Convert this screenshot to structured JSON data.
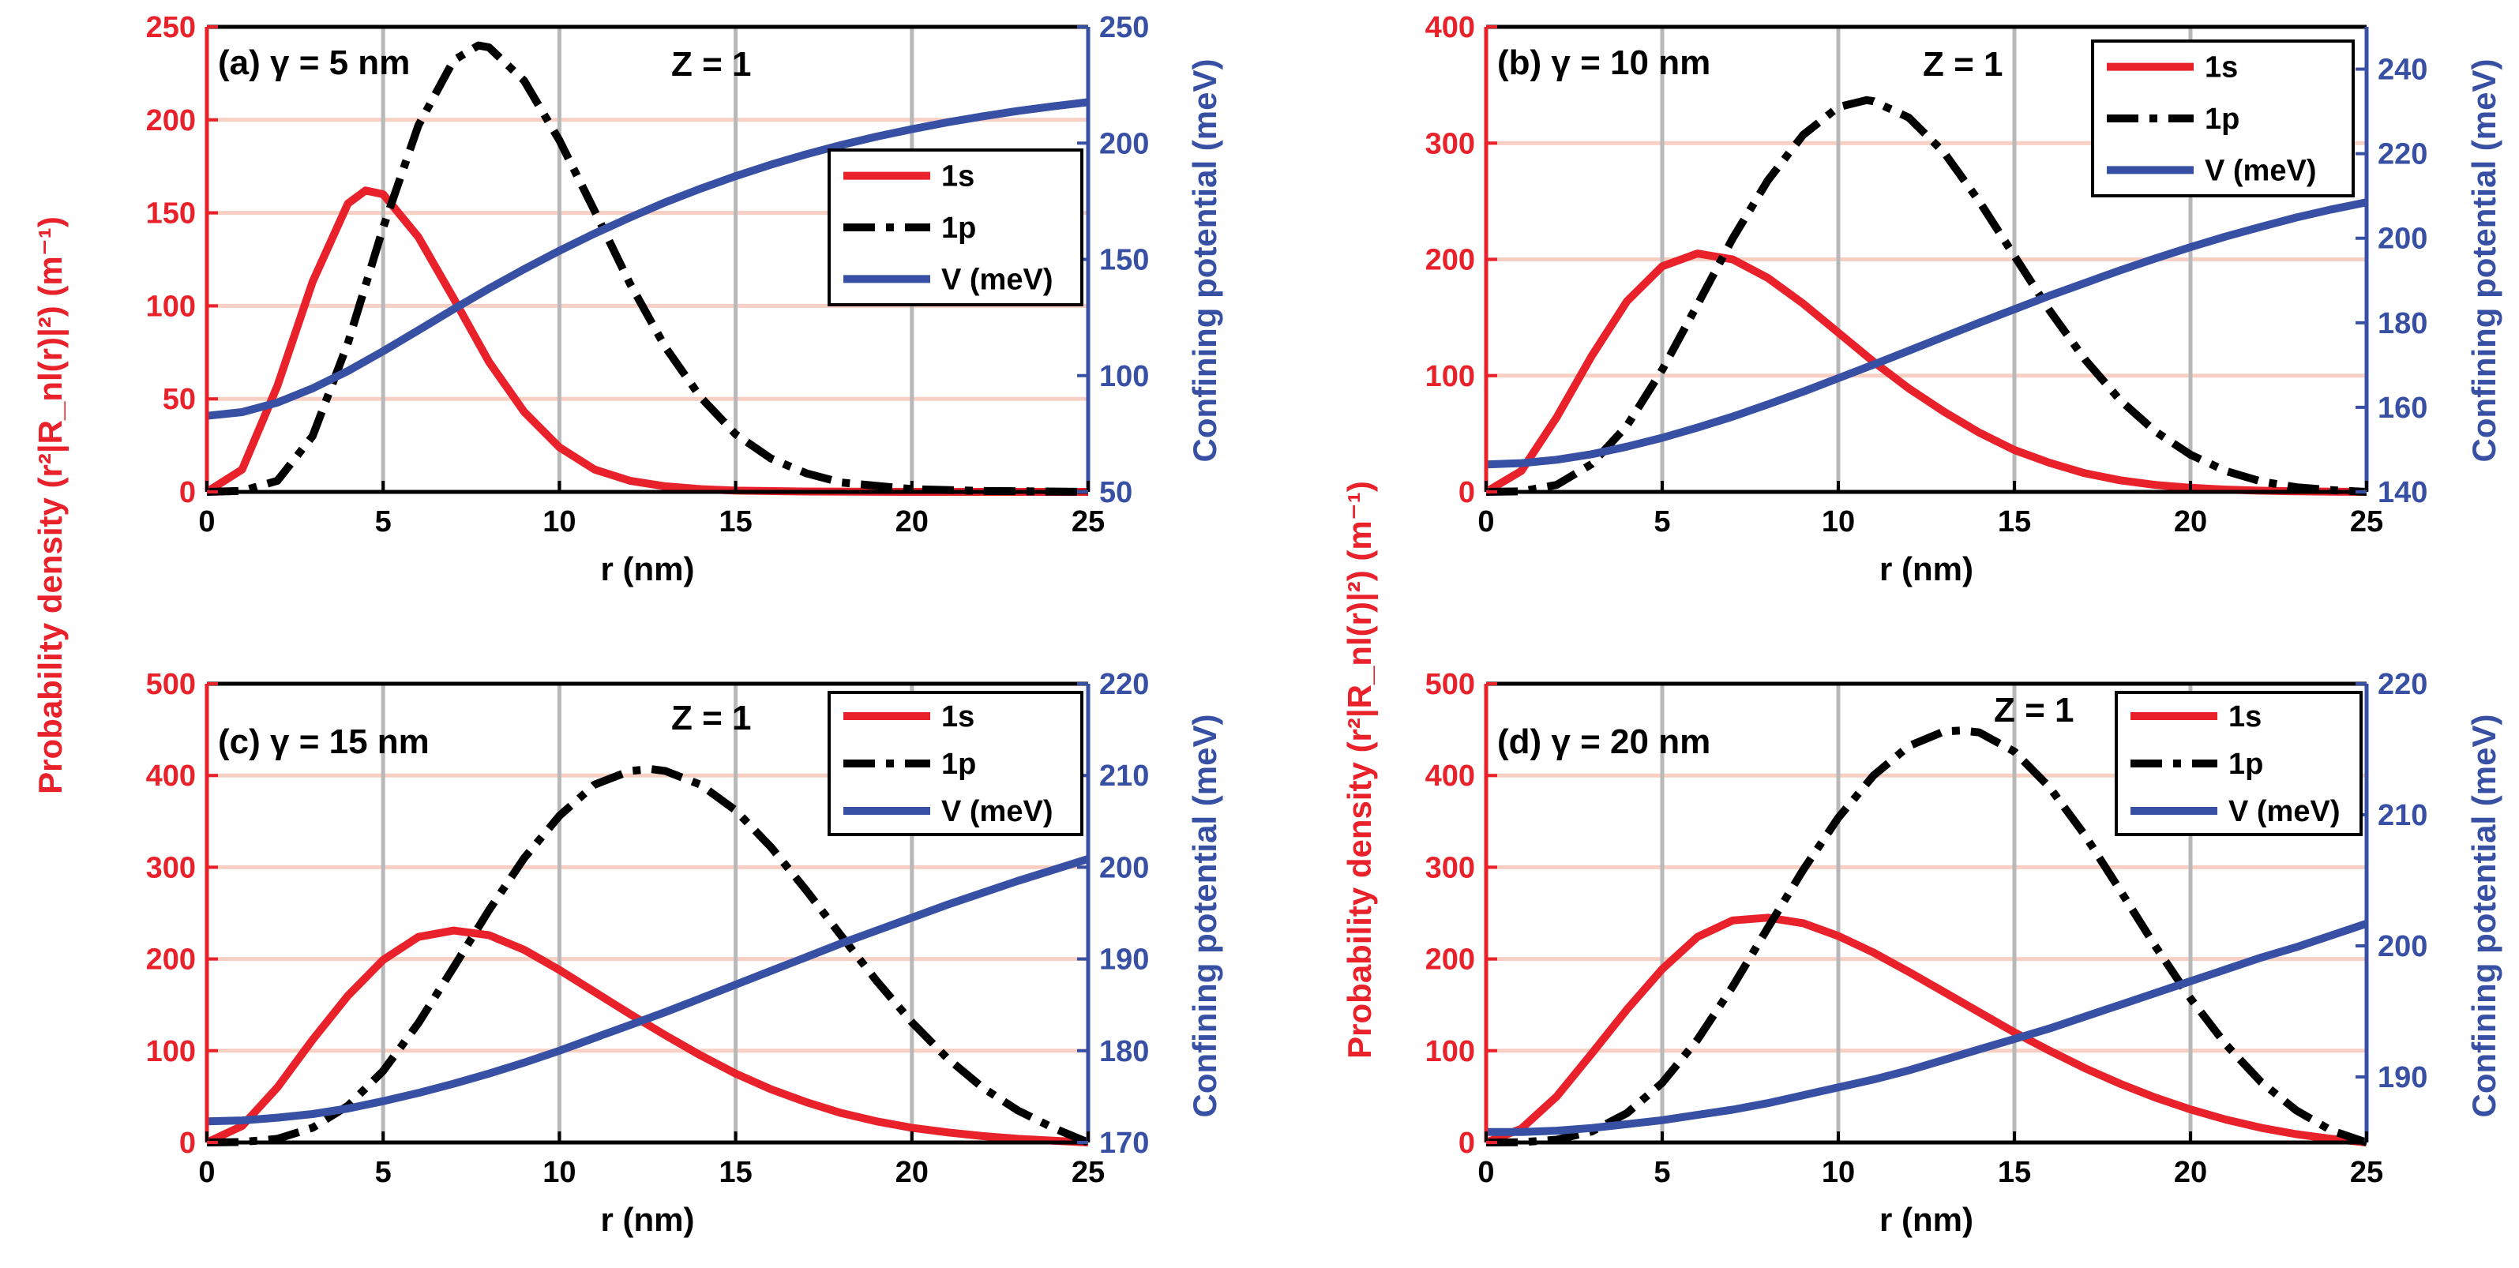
{
  "figure": {
    "left_ylabel": "Probability density (r²|R_nl(r)|²) (m⁻¹)",
    "right_ylabel": "Confining potential (meV)",
    "colors": {
      "s1": "#e8212a",
      "p1": "#000000",
      "V": "#3850a3",
      "hgrid": "#f7cfc3",
      "vgrid": "#b8b8b8"
    }
  },
  "chart_data": [
    {
      "type": "line",
      "panel_label": "(a) γ = 5 nm",
      "z_label": "Z = 1",
      "xlabel": "r (nm)",
      "xlim": [
        0,
        25
      ],
      "xticks": [
        0,
        5,
        10,
        15,
        20,
        25
      ],
      "ylim_left": [
        0,
        250
      ],
      "yticks_left": [
        0,
        50,
        100,
        150,
        200,
        250
      ],
      "ylim_right": [
        50,
        250
      ],
      "yticks_right": [
        50,
        100,
        150,
        200,
        250
      ],
      "legend_position": "upper-right",
      "series": [
        {
          "name": "1s",
          "axis": "left",
          "style": "solid",
          "color": "#e8212a",
          "x": [
            0,
            1,
            2,
            3,
            4,
            4.5,
            5,
            6,
            7,
            8,
            9,
            10,
            11,
            12,
            13,
            14,
            15,
            17,
            20,
            25
          ],
          "values": [
            0,
            12,
            57,
            113,
            155,
            162,
            160,
            137,
            104,
            70,
            43,
            24,
            12,
            6,
            3,
            1.5,
            0.7,
            0.2,
            0,
            0
          ]
        },
        {
          "name": "1p",
          "axis": "left",
          "style": "dash-dot",
          "color": "#000000",
          "x": [
            0,
            1,
            2,
            3,
            4,
            5,
            6,
            7,
            7.7,
            8,
            9,
            10,
            11,
            12,
            13,
            14,
            15,
            16,
            17,
            18,
            20,
            22,
            25
          ],
          "values": [
            0,
            0.5,
            6,
            30,
            80,
            142,
            197,
            232,
            240,
            239,
            221,
            189,
            151,
            112,
            78,
            51,
            31,
            18,
            10,
            5,
            1.5,
            0.5,
            0
          ]
        },
        {
          "name": "V (meV)",
          "axis": "right",
          "style": "solid",
          "color": "#3850a3",
          "x": [
            0,
            1,
            2,
            3,
            4,
            5,
            6,
            7,
            8,
            9,
            10,
            11,
            12,
            13,
            14,
            15,
            16,
            17,
            18,
            19,
            20,
            21,
            22,
            23,
            24,
            25
          ],
          "values": [
            82.7,
            84.3,
            88.4,
            94.5,
            102,
            110.5,
            119.5,
            128.6,
            137.4,
            145.8,
            153.7,
            161.1,
            168,
            174.5,
            180.4,
            185.8,
            190.7,
            195.2,
            199.2,
            202.8,
            206,
            208.9,
            211.5,
            213.8,
            215.8,
            217.6
          ]
        }
      ]
    },
    {
      "type": "line",
      "panel_label": "(b) γ = 10 nm",
      "z_label": "Z = 1",
      "xlabel": "r (nm)",
      "xlim": [
        0,
        25
      ],
      "xticks": [
        0,
        5,
        10,
        15,
        20,
        25
      ],
      "ylim_left": [
        0,
        400
      ],
      "yticks_left": [
        0,
        100,
        200,
        300,
        400
      ],
      "ylim_right": [
        140,
        250
      ],
      "yticks_right": [
        140,
        160,
        180,
        200,
        220,
        240
      ],
      "legend_position": "upper-right",
      "series": [
        {
          "name": "1s",
          "axis": "left",
          "style": "solid",
          "color": "#e8212a",
          "x": [
            0,
            1,
            2,
            3,
            4,
            5,
            6,
            7,
            8,
            9,
            10,
            11,
            12,
            13,
            14,
            15,
            16,
            17,
            18,
            19,
            20,
            21,
            22,
            23,
            24,
            25
          ],
          "values": [
            0,
            18,
            64,
            117,
            164,
            194,
            205,
            200,
            184,
            162,
            137,
            112,
            89,
            69,
            51,
            36,
            25,
            16,
            10,
            6,
            3.5,
            2,
            1,
            0.5,
            0.2,
            0
          ]
        },
        {
          "name": "1p",
          "axis": "left",
          "style": "dash-dot",
          "color": "#000000",
          "x": [
            0,
            1,
            2,
            3,
            4,
            5,
            6,
            7,
            8,
            9,
            10,
            10.8,
            11,
            12,
            13,
            14,
            15,
            16,
            17,
            18,
            19,
            20,
            21,
            22,
            23,
            24,
            25
          ],
          "values": [
            0,
            0.5,
            6,
            24,
            57,
            105,
            161,
            218,
            268,
            307,
            331,
            337,
            336,
            322,
            292,
            250,
            203,
            156,
            114,
            79,
            52,
            32,
            18,
            9,
            4,
            1.5,
            0
          ]
        },
        {
          "name": "V (meV)",
          "axis": "right",
          "style": "solid",
          "color": "#3850a3",
          "x": [
            0,
            1,
            2,
            3,
            4,
            5,
            6,
            7,
            8,
            9,
            10,
            11,
            12,
            13,
            14,
            15,
            16,
            17,
            18,
            19,
            20,
            21,
            22,
            23,
            24,
            25
          ],
          "values": [
            146.5,
            146.8,
            147.6,
            148.9,
            150.7,
            152.8,
            155.2,
            157.8,
            160.7,
            163.7,
            166.9,
            170.1,
            173.4,
            176.7,
            180,
            183.2,
            186.4,
            189.4,
            192.4,
            195.2,
            197.9,
            200.4,
            202.7,
            204.9,
            206.8,
            208.5
          ]
        }
      ]
    },
    {
      "type": "line",
      "panel_label": "(c) γ = 15 nm",
      "z_label": "Z = 1",
      "xlabel": "r (nm)",
      "xlim": [
        0,
        25
      ],
      "xticks": [
        0,
        5,
        10,
        15,
        20,
        25
      ],
      "ylim_left": [
        0,
        500
      ],
      "yticks_left": [
        0,
        100,
        200,
        300,
        400,
        500
      ],
      "ylim_right": [
        170,
        220
      ],
      "yticks_right": [
        170,
        180,
        190,
        200,
        210,
        220
      ],
      "legend_position": "upper-right",
      "series": [
        {
          "name": "1s",
          "axis": "left",
          "style": "solid",
          "color": "#e8212a",
          "x": [
            0,
            1,
            2,
            3,
            4,
            5,
            6,
            7,
            8,
            9,
            10,
            11,
            12,
            13,
            14,
            15,
            16,
            17,
            18,
            19,
            20,
            21,
            22,
            23,
            24,
            25
          ],
          "values": [
            0,
            18,
            60,
            112,
            160,
            199,
            224,
            231,
            226,
            210,
            188,
            164,
            140,
            117,
            95,
            75,
            58,
            44,
            32,
            23,
            16,
            11,
            7,
            4,
            2,
            0
          ]
        },
        {
          "name": "1p",
          "axis": "left",
          "style": "dash-dot",
          "color": "#000000",
          "x": [
            0,
            1,
            2,
            3,
            4,
            5,
            6,
            7,
            8,
            9,
            10,
            11,
            12,
            12.6,
            13,
            14,
            15,
            16,
            17,
            18,
            19,
            20,
            21,
            22,
            23,
            24,
            25
          ],
          "values": [
            0,
            0.5,
            4,
            16,
            40,
            78,
            130,
            191,
            253,
            310,
            356,
            390,
            405,
            407,
            405,
            390,
            362,
            322,
            275,
            225,
            176,
            131,
            92,
            60,
            35,
            16,
            0
          ]
        },
        {
          "name": "V (meV)",
          "axis": "right",
          "style": "solid",
          "color": "#3850a3",
          "x": [
            0,
            1,
            2,
            3,
            4,
            5,
            6,
            7,
            8,
            9,
            10,
            11,
            12,
            13,
            14,
            15,
            16,
            17,
            18,
            19,
            20,
            21,
            22,
            23,
            24,
            25
          ],
          "values": [
            172.3,
            172.4,
            172.7,
            173.1,
            173.7,
            174.5,
            175.4,
            176.4,
            177.5,
            178.7,
            180,
            181.4,
            182.8,
            184.2,
            185.7,
            187.2,
            188.7,
            190.2,
            191.7,
            193.1,
            194.5,
            195.9,
            197.2,
            198.5,
            199.7,
            200.9
          ]
        }
      ]
    },
    {
      "type": "line",
      "panel_label": "(d) γ = 20 nm",
      "z_label": "Z = 1",
      "xlabel": "r (nm)",
      "xlim": [
        0,
        25
      ],
      "xticks": [
        0,
        5,
        10,
        15,
        20,
        25
      ],
      "ylim_left": [
        0,
        500
      ],
      "yticks_left": [
        0,
        100,
        200,
        300,
        400,
        500
      ],
      "ylim_right": [
        185,
        220
      ],
      "yticks_right": [
        190,
        200,
        210,
        220
      ],
      "legend_position": "upper-right",
      "series": [
        {
          "name": "1s",
          "axis": "left",
          "style": "solid",
          "color": "#e8212a",
          "x": [
            0,
            1,
            2,
            3,
            4,
            5,
            6,
            7,
            8,
            9,
            10,
            11,
            12,
            13,
            14,
            15,
            16,
            17,
            18,
            19,
            20,
            21,
            22,
            23,
            24,
            25
          ],
          "values": [
            0,
            15,
            50,
            97,
            145,
            189,
            224,
            242,
            245,
            239,
            225,
            207,
            186,
            164,
            142,
            120,
            100,
            81,
            64,
            49,
            36,
            25,
            16,
            9,
            4,
            0
          ]
        },
        {
          "name": "1p",
          "axis": "left",
          "style": "dash-dot",
          "color": "#000000",
          "x": [
            0,
            1,
            2,
            3,
            4,
            5,
            6,
            7,
            8,
            9,
            10,
            11,
            12,
            13,
            13.5,
            14,
            15,
            16,
            17,
            18,
            19,
            20,
            21,
            22,
            23,
            24,
            25
          ],
          "values": [
            0,
            0.3,
            3,
            12,
            32,
            65,
            112,
            170,
            234,
            297,
            354,
            400,
            432,
            448,
            449,
            447,
            426,
            387,
            335,
            275,
            214,
            157,
            107,
            66,
            35,
            13,
            0
          ]
        },
        {
          "name": "V (meV)",
          "axis": "right",
          "style": "solid",
          "color": "#3850a3",
          "x": [
            0,
            1,
            2,
            3,
            4,
            5,
            6,
            7,
            8,
            9,
            10,
            11,
            12,
            13,
            14,
            15,
            16,
            17,
            18,
            19,
            20,
            21,
            22,
            23,
            24,
            25
          ],
          "values": [
            185.8,
            185.8,
            185.9,
            186.1,
            186.4,
            186.7,
            187.1,
            187.5,
            188,
            188.6,
            189.2,
            189.8,
            190.5,
            191.3,
            192.1,
            192.9,
            193.7,
            194.6,
            195.5,
            196.4,
            197.3,
            198.2,
            199.1,
            199.9,
            200.8,
            201.7
          ]
        }
      ]
    }
  ]
}
